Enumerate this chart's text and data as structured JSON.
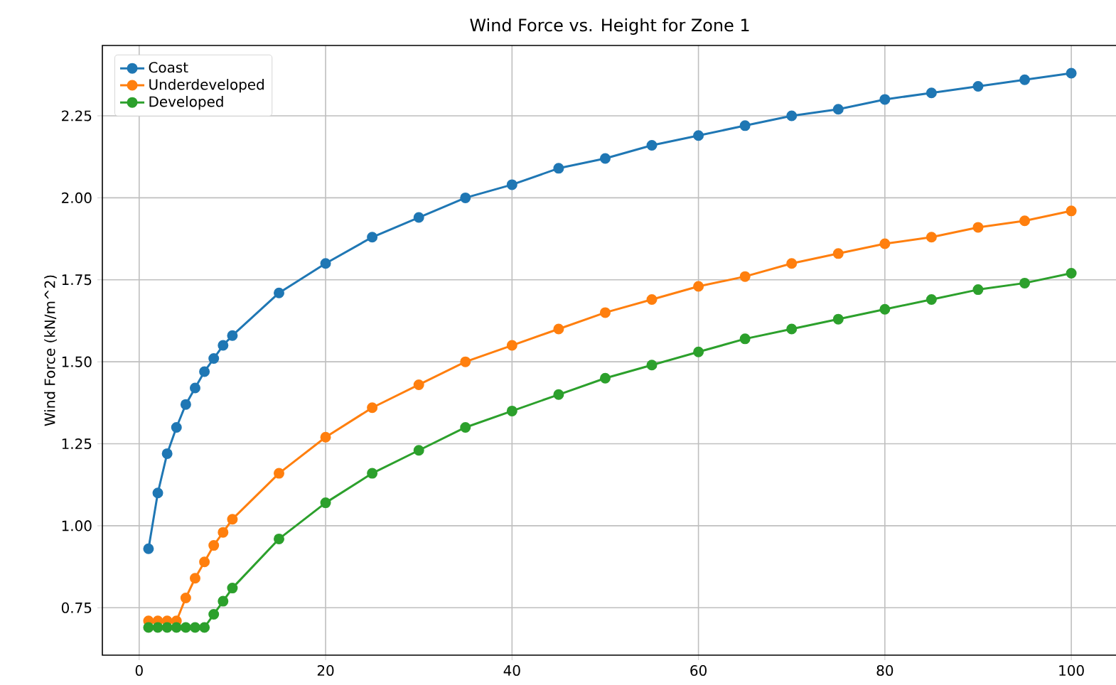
{
  "chart_data": {
    "type": "line",
    "title": "Wind Force vs. Height for Zone 1",
    "ylabel": "Wind Force (kN/m^2)",
    "x": [
      1,
      2,
      3,
      4,
      5,
      6,
      7,
      8,
      9,
      10,
      15,
      20,
      25,
      30,
      35,
      40,
      45,
      50,
      55,
      60,
      65,
      70,
      75,
      80,
      85,
      90,
      95,
      100
    ],
    "series": [
      {
        "name": "Coast",
        "color": "#1f77b4",
        "values": [
          0.93,
          1.1,
          1.22,
          1.3,
          1.37,
          1.42,
          1.47,
          1.51,
          1.55,
          1.58,
          1.71,
          1.8,
          1.88,
          1.94,
          2.0,
          2.04,
          2.09,
          2.12,
          2.16,
          2.19,
          2.22,
          2.25,
          2.27,
          2.3,
          2.32,
          2.34,
          2.36,
          2.38
        ]
      },
      {
        "name": "Underdeveloped",
        "color": "#ff7f0e",
        "values": [
          0.71,
          0.71,
          0.71,
          0.71,
          0.78,
          0.84,
          0.89,
          0.94,
          0.98,
          1.02,
          1.16,
          1.27,
          1.36,
          1.43,
          1.5,
          1.55,
          1.6,
          1.65,
          1.69,
          1.73,
          1.76,
          1.8,
          1.83,
          1.86,
          1.88,
          1.91,
          1.93,
          1.96
        ]
      },
      {
        "name": "Developed",
        "color": "#2ca02c",
        "values": [
          0.69,
          0.69,
          0.69,
          0.69,
          0.69,
          0.69,
          0.69,
          0.73,
          0.77,
          0.81,
          0.96,
          1.07,
          1.16,
          1.23,
          1.3,
          1.35,
          1.4,
          1.45,
          1.49,
          1.53,
          1.57,
          1.6,
          1.63,
          1.66,
          1.69,
          1.72,
          1.74,
          1.77
        ]
      }
    ],
    "xlim": [
      -3.95,
      104.95
    ],
    "ylim": [
      0.6055,
      2.4645
    ],
    "xticks": [
      0,
      20,
      40,
      60,
      80,
      100
    ],
    "yticks": [
      {
        "value": 0.75,
        "label": "0.75"
      },
      {
        "value": 1,
        "label": "1.00"
      },
      {
        "value": 1.25,
        "label": "1.25"
      },
      {
        "value": 1.5,
        "label": "1.50"
      },
      {
        "value": 1.75,
        "label": "1.75"
      },
      {
        "value": 2,
        "label": "2.00"
      },
      {
        "value": 2.25,
        "label": "2.25"
      }
    ],
    "grid": true,
    "legend": "top left",
    "marker": "circle",
    "line_style": "solid"
  }
}
